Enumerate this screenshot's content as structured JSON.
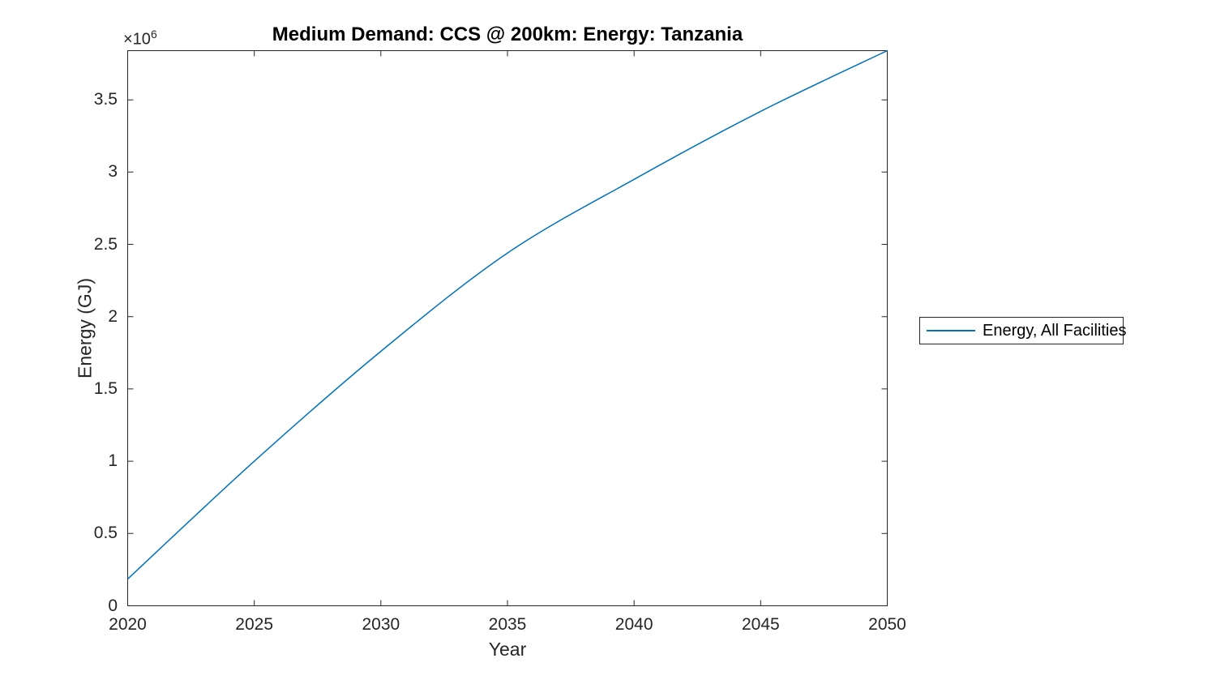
{
  "figure": {
    "title": "Medium Demand: CCS @ 200km: Energy: Tanzania",
    "x_axis_label": "Year",
    "y_axis_label": "Energy (GJ)",
    "y_exponent_prefix": "×10",
    "y_exponent": "6",
    "legend": {
      "items": [
        {
          "label": "Energy, All Facilities",
          "color": "#0072BD"
        }
      ]
    },
    "colors": {
      "background": "#ffffff",
      "line": "#0072BD",
      "axis": "#262626",
      "tick_text": "#262626",
      "title_text": "#000000"
    }
  },
  "chart_data": {
    "type": "line",
    "title": "Medium Demand: CCS @ 200km: Energy: Tanzania",
    "xlabel": "Year",
    "ylabel": "Energy (GJ)",
    "y_unit_multiplier": "1e6",
    "series": [
      {
        "name": "Energy, All Facilities",
        "color": "#0072BD",
        "x": [
          2020,
          2025,
          2030,
          2035,
          2040,
          2045,
          2050
        ],
        "y": [
          185000,
          1000000,
          1760000,
          2440000,
          2950000,
          3420000,
          3840000
        ]
      }
    ],
    "xlim": [
      2020,
      2050
    ],
    "ylim": [
      0,
      3840000
    ],
    "x_ticks": [
      2020,
      2025,
      2030,
      2035,
      2040,
      2045,
      2050
    ],
    "x_tick_labels": [
      "2020",
      "2025",
      "2030",
      "2035",
      "2040",
      "2045",
      "2050"
    ],
    "y_ticks": [
      0,
      500000,
      1000000,
      1500000,
      2000000,
      2500000,
      3000000,
      3500000
    ],
    "y_tick_labels": [
      "0",
      "0.5",
      "1",
      "1.5",
      "2",
      "2.5",
      "3",
      "3.5"
    ],
    "grid": false,
    "box": true,
    "legend_position": "outside-right"
  }
}
